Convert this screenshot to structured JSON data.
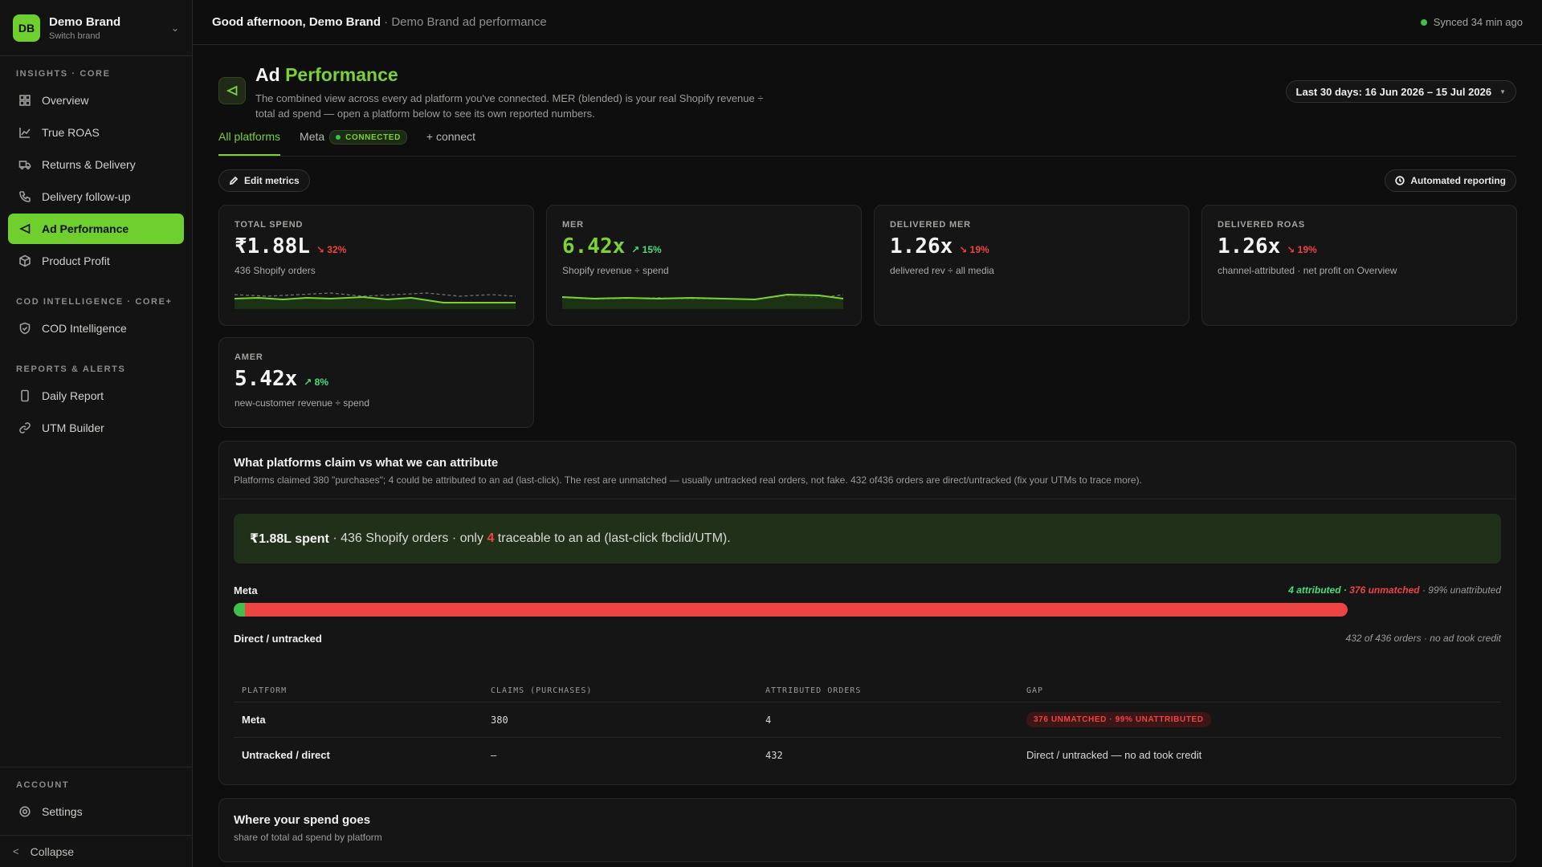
{
  "brand": {
    "initials": "DB",
    "name": "Demo Brand",
    "sub": "Switch brand"
  },
  "sidebar": {
    "sections": [
      {
        "heading": "INSIGHTS · CORE",
        "items": [
          {
            "label": "Overview",
            "icon": "grid-icon"
          },
          {
            "label": "True ROAS",
            "icon": "chart-line-icon"
          },
          {
            "label": "Returns & Delivery",
            "icon": "truck-icon"
          },
          {
            "label": "Delivery follow-up",
            "icon": "phone-icon"
          },
          {
            "label": "Ad Performance",
            "icon": "megaphone-icon",
            "active": true
          },
          {
            "label": "Product Profit",
            "icon": "box-icon"
          }
        ]
      },
      {
        "heading": "COD INTELLIGENCE · CORE+",
        "items": [
          {
            "label": "COD Intelligence",
            "icon": "shield-check-icon"
          }
        ]
      },
      {
        "heading": "REPORTS & ALERTS",
        "items": [
          {
            "label": "Daily Report",
            "icon": "phone-device-icon"
          },
          {
            "label": "UTM Builder",
            "icon": "link-icon"
          }
        ]
      }
    ],
    "account": {
      "heading": "ACCOUNT",
      "settings": "Settings"
    },
    "collapse": "Collapse"
  },
  "topbar": {
    "greeting": "Good afternoon, Demo Brand",
    "context": "· Demo Brand ad performance",
    "sync": "Synced 34 min ago"
  },
  "page": {
    "title_a": "Ad",
    "title_b": "Performance",
    "description": "The combined view across every ad platform you've connected. MER (blended) is your real Shopify revenue ÷ total ad spend — open a platform below to see its own reported numbers.",
    "date_range": "Last 30 days: 16 Jun 2026 – 15 Jul 2026"
  },
  "tabs": {
    "all": "All platforms",
    "meta": "Meta",
    "meta_badge": "CONNECTED",
    "connect": "+ connect"
  },
  "toolbar": {
    "edit": "Edit metrics",
    "automated": "Automated reporting"
  },
  "kpis": [
    {
      "label": "TOTAL SPEND",
      "value": "₹1.88L",
      "delta": "↘ 32%",
      "sub": "436 Shopify orders"
    },
    {
      "label": "MER",
      "value": "6.42x",
      "delta": "↗ 15%",
      "sub": "Shopify revenue ÷ spend"
    },
    {
      "label": "DELIVERED MER",
      "value": "1.26x",
      "delta": "↘ 19%",
      "sub": "delivered rev ÷ all media"
    },
    {
      "label": "DELIVERED ROAS",
      "value": "1.26x",
      "delta": "↘ 19%",
      "sub": "channel-attributed · net profit on Overview"
    },
    {
      "label": "AMER",
      "value": "5.42x",
      "delta": "↗ 8%",
      "sub": "new-customer revenue ÷ spend"
    }
  ],
  "attribution": {
    "title": "What platforms claim vs what we can attribute",
    "subtitle": "Platforms claimed 380 \"purchases\"; 4 could be attributed to an ad (last-click). The rest are unmatched — usually untracked real orders, not fake. 432 of436 orders are direct/untracked (fix your UTMs to trace more).",
    "callout_spent": "₹1.88L spent",
    "callout_mid": "· 436 Shopify orders · only",
    "callout_num": "4",
    "callout_end": "traceable to an ad (last-click fbclid/UTM).",
    "meta_name": "Meta",
    "meta_attr": "4 attributed",
    "meta_sep": "·",
    "meta_unmatched": "376 unmatched",
    "meta_unattr": "· 99% unattributed",
    "meta_attributed_fraction": 0.01,
    "direct_name": "Direct / untracked",
    "direct_note": "432 of 436 orders · no ad took credit",
    "table": {
      "headers": [
        "PLATFORM",
        "CLAIMS (PURCHASES)",
        "ATTRIBUTED ORDERS",
        "GAP"
      ],
      "rows": [
        {
          "platform": "Meta",
          "claims": "380",
          "attributed": "4",
          "gap": "376 UNMATCHED · 99% UNATTRIBUTED"
        },
        {
          "platform": "Untracked / direct",
          "claims": "–",
          "attributed": "432",
          "gap": "Direct / untracked — no ad took credit"
        }
      ]
    }
  },
  "spend": {
    "title": "Where your spend goes",
    "subtitle": "share of total ad spend by platform"
  },
  "colors": {
    "accent": "#7bd136",
    "danger": "#ef4444",
    "success": "#3ec04a"
  }
}
